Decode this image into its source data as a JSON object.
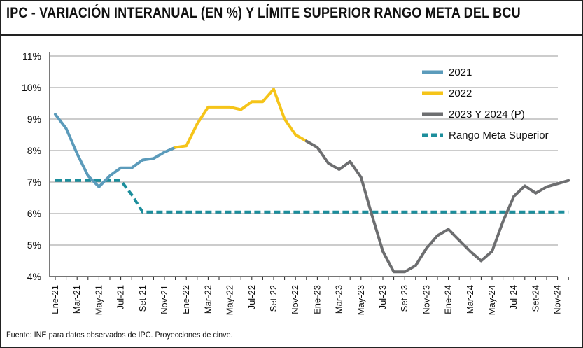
{
  "header": {
    "title": "IPC - VARIACIÓN INTERANUAL (EN %) Y LÍMITE SUPERIOR RANGO META DEL BCU"
  },
  "footer": {
    "source": "Fuente: INE para datos observados de IPC. Proyecciones de cinve."
  },
  "chart_data": {
    "type": "line",
    "title": "IPC - VARIACIÓN INTERANUAL (EN %) Y LÍMITE SUPERIOR RANGO META DEL BCU",
    "xlabel": "",
    "ylabel": "",
    "ylim": [
      4,
      11
    ],
    "yticks": [
      "4%",
      "5%",
      "6%",
      "7%",
      "8%",
      "9%",
      "10%",
      "11%"
    ],
    "grid": "horizontal",
    "legend_position": "top-right",
    "x_tick_labels": [
      "Ene-21",
      "Mar-21",
      "May-21",
      "Jul-21",
      "Set-21",
      "Nov-21",
      "Ene-22",
      "Mar-22",
      "May-22",
      "Jul-22",
      "Set-22",
      "Nov-22",
      "Ene-23",
      "Mar-23",
      "May-23",
      "Jul-23",
      "Set-23",
      "Nov-23",
      "Ene-24",
      "Mar-24",
      "May-24",
      "Jul-24",
      "Set-24",
      "Nov-24"
    ],
    "x_months": [
      "Ene-21",
      "Feb-21",
      "Mar-21",
      "Abr-21",
      "May-21",
      "Jun-21",
      "Jul-21",
      "Ago-21",
      "Set-21",
      "Oct-21",
      "Nov-21",
      "Dic-21",
      "Ene-22",
      "Feb-22",
      "Mar-22",
      "Abr-22",
      "May-22",
      "Jun-22",
      "Jul-22",
      "Ago-22",
      "Set-22",
      "Oct-22",
      "Nov-22",
      "Dic-22",
      "Ene-23",
      "Feb-23",
      "Mar-23",
      "Abr-23",
      "May-23",
      "Jun-23",
      "Jul-23",
      "Ago-23",
      "Set-23",
      "Oct-23",
      "Nov-23",
      "Dic-23",
      "Ene-24",
      "Feb-24",
      "Mar-24",
      "Abr-24",
      "May-24",
      "Jun-24",
      "Jul-24",
      "Ago-24",
      "Set-24",
      "Oct-24",
      "Nov-24",
      "Dic-24"
    ],
    "series": [
      {
        "name": "2021",
        "color": "#5b9bbb",
        "style": "solid",
        "points": [
          {
            "x": "Ene-21",
            "y": 9.15
          },
          {
            "x": "Feb-21",
            "y": 8.7
          },
          {
            "x": "Mar-21",
            "y": 7.9
          },
          {
            "x": "Abr-21",
            "y": 7.2
          },
          {
            "x": "May-21",
            "y": 6.85
          },
          {
            "x": "Jun-21",
            "y": 7.2
          },
          {
            "x": "Jul-21",
            "y": 7.45
          },
          {
            "x": "Ago-21",
            "y": 7.45
          },
          {
            "x": "Set-21",
            "y": 7.7
          },
          {
            "x": "Oct-21",
            "y": 7.75
          },
          {
            "x": "Nov-21",
            "y": 7.95
          },
          {
            "x": "Dic-21",
            "y": 8.1
          }
        ]
      },
      {
        "name": "2022",
        "color": "#f5c419",
        "style": "solid",
        "points": [
          {
            "x": "Dic-21",
            "y": 8.1
          },
          {
            "x": "Ene-22",
            "y": 8.15
          },
          {
            "x": "Feb-22",
            "y": 8.85
          },
          {
            "x": "Mar-22",
            "y": 9.38
          },
          {
            "x": "Abr-22",
            "y": 9.38
          },
          {
            "x": "May-22",
            "y": 9.38
          },
          {
            "x": "Jun-22",
            "y": 9.3
          },
          {
            "x": "Jul-22",
            "y": 9.55
          },
          {
            "x": "Ago-22",
            "y": 9.55
          },
          {
            "x": "Set-22",
            "y": 9.95
          },
          {
            "x": "Oct-22",
            "y": 9.0
          },
          {
            "x": "Nov-22",
            "y": 8.5
          },
          {
            "x": "Dic-22",
            "y": 8.3
          }
        ]
      },
      {
        "name": "2023 Y 2024  (P)",
        "color": "#6d6e70",
        "style": "solid",
        "points": [
          {
            "x": "Dic-22",
            "y": 8.3
          },
          {
            "x": "Ene-23",
            "y": 8.1
          },
          {
            "x": "Feb-23",
            "y": 7.6
          },
          {
            "x": "Mar-23",
            "y": 7.4
          },
          {
            "x": "Abr-23",
            "y": 7.65
          },
          {
            "x": "May-23",
            "y": 7.15
          },
          {
            "x": "Jun-23",
            "y": 5.95
          },
          {
            "x": "Jul-23",
            "y": 4.8
          },
          {
            "x": "Ago-23",
            "y": 4.15
          },
          {
            "x": "Set-23",
            "y": 4.15
          },
          {
            "x": "Oct-23",
            "y": 4.35
          },
          {
            "x": "Nov-23",
            "y": 4.9
          },
          {
            "x": "Dic-23",
            "y": 5.3
          },
          {
            "x": "Ene-24",
            "y": 5.5
          },
          {
            "x": "Feb-24",
            "y": 5.15
          },
          {
            "x": "Mar-24",
            "y": 4.8
          },
          {
            "x": "Abr-24",
            "y": 4.5
          },
          {
            "x": "May-24",
            "y": 4.8
          },
          {
            "x": "Jun-24",
            "y": 5.75
          },
          {
            "x": "Jul-24",
            "y": 6.55
          },
          {
            "x": "Ago-24",
            "y": 6.88
          },
          {
            "x": "Set-24",
            "y": 6.65
          },
          {
            "x": "Oct-24",
            "y": 6.85
          },
          {
            "x": "Nov-24",
            "y": 6.95
          },
          {
            "x": "Dic-24",
            "y": 7.05
          }
        ]
      },
      {
        "name": "Rango Meta Superior",
        "color": "#1c8e9c",
        "style": "dashed",
        "points": [
          {
            "x": "Ene-21",
            "y": 7.05
          },
          {
            "x": "Jul-21",
            "y": 7.05
          },
          {
            "x": "Ago-21",
            "y": 6.6
          },
          {
            "x": "Set-21",
            "y": 6.05
          },
          {
            "x": "Dic-24",
            "y": 6.05
          }
        ]
      }
    ]
  }
}
